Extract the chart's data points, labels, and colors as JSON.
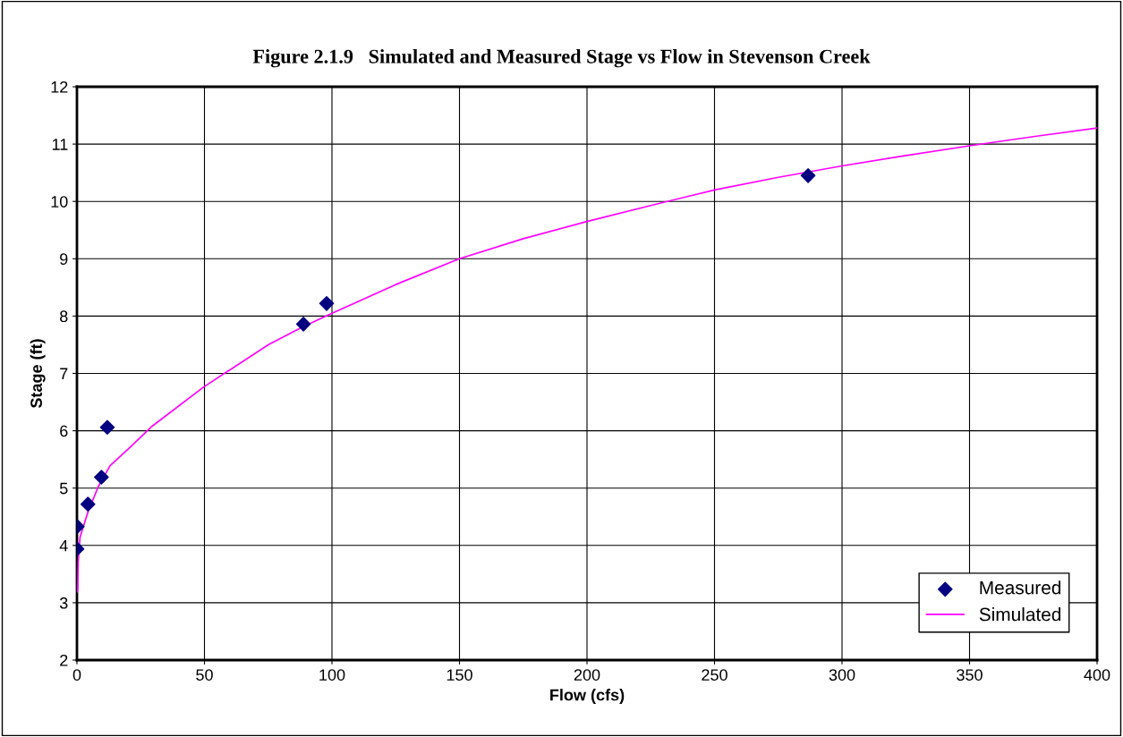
{
  "chart_data": {
    "type": "scatter",
    "title": "Figure 2.1.9   Simulated and Measured Stage vs Flow in Stevenson Creek",
    "xlabel": "Flow (cfs)",
    "ylabel": "Stage (ft)",
    "xlim": [
      0,
      400
    ],
    "xticks": [
      0,
      50,
      100,
      150,
      200,
      250,
      300,
      350,
      400
    ],
    "ylim": [
      2,
      12
    ],
    "yticks": [
      2,
      3,
      4,
      5,
      6,
      7,
      8,
      9,
      10,
      11,
      12
    ],
    "grid": true,
    "legend": "bottom right",
    "series": [
      {
        "name": "Measured",
        "marker": "diamond",
        "color": "#000080",
        "x": [
          0.0,
          0.1,
          4.3,
          9.6,
          11.9,
          88.8,
          97.9,
          286.7
        ],
        "values": [
          3.94,
          4.33,
          4.72,
          5.19,
          6.06,
          7.86,
          8.22,
          10.45
        ]
      },
      {
        "name": "Simulated",
        "type": "line",
        "marker": "none",
        "color": "#ff00ff",
        "x": [
          0,
          0.3,
          0.5,
          1.2,
          4.3,
          8.4,
          13,
          21,
          29.5,
          49.6,
          75,
          88,
          100,
          125,
          150,
          175,
          200,
          225,
          250,
          275,
          300,
          325,
          350,
          375,
          400
        ],
        "values": [
          3.19,
          3.22,
          3.72,
          4.14,
          4.58,
          5.03,
          5.39,
          5.72,
          6.08,
          6.76,
          7.5,
          7.8,
          8.05,
          8.55,
          9.0,
          9.35,
          9.65,
          9.93,
          10.2,
          10.42,
          10.62,
          10.8,
          10.97,
          11.13,
          11.28
        ]
      }
    ]
  }
}
